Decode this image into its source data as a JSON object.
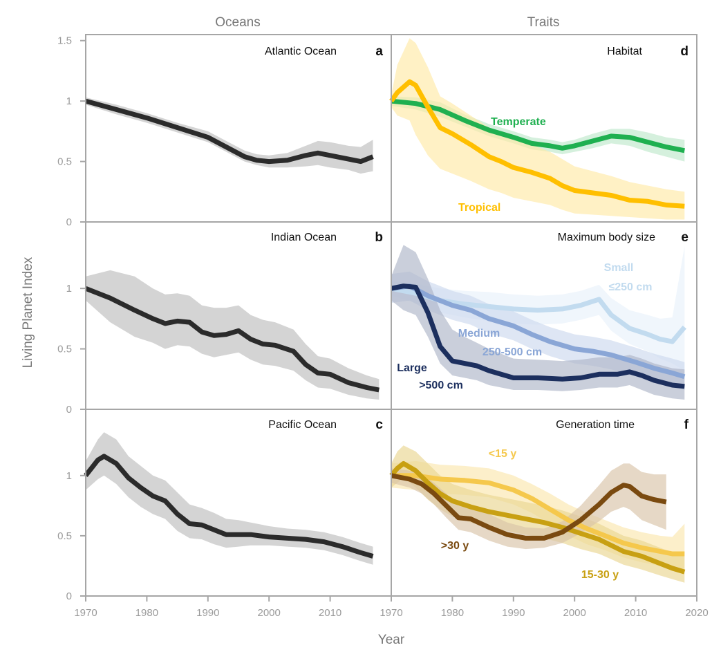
{
  "column_titles": {
    "left": "Oceans",
    "right": "Traits"
  },
  "axes": {
    "ylabel": "Living Planet Index",
    "xlabel": "Year"
  },
  "chart_data": [
    {
      "type": "line",
      "panel": "a",
      "title": "Atlantic Ocean",
      "ylim": [
        0,
        1.55
      ],
      "yticks": [
        "0",
        "0.5",
        "1",
        "1.5"
      ],
      "series": [
        {
          "color": "#2b2b2b",
          "band": "#bdbdbd",
          "x": [
            1970,
            1975,
            1980,
            1985,
            1990,
            1993,
            1996,
            1998,
            2000,
            2003,
            2006,
            2008,
            2010,
            2013,
            2015,
            2017
          ],
          "values": [
            1.0,
            0.93,
            0.86,
            0.78,
            0.7,
            0.62,
            0.54,
            0.51,
            0.5,
            0.51,
            0.55,
            0.57,
            0.55,
            0.52,
            0.5,
            0.54
          ],
          "lower": [
            0.97,
            0.89,
            0.82,
            0.74,
            0.66,
            0.58,
            0.5,
            0.47,
            0.45,
            0.45,
            0.46,
            0.47,
            0.45,
            0.43,
            0.4,
            0.42
          ],
          "upper": [
            1.03,
            0.97,
            0.9,
            0.82,
            0.75,
            0.67,
            0.59,
            0.56,
            0.55,
            0.57,
            0.63,
            0.67,
            0.66,
            0.63,
            0.62,
            0.68
          ]
        }
      ]
    },
    {
      "type": "line",
      "panel": "d",
      "title": "Habitat",
      "ylim": [
        0,
        1.55
      ],
      "series": [
        {
          "name": "Temperate",
          "color": "#1fb050",
          "band": "#bfe8cb",
          "x": [
            1970,
            1974,
            1978,
            1982,
            1986,
            1990,
            1993,
            1996,
            1998,
            2000,
            2003,
            2006,
            2009,
            2012,
            2015,
            2018
          ],
          "values": [
            1.0,
            0.98,
            0.93,
            0.84,
            0.76,
            0.7,
            0.65,
            0.63,
            0.61,
            0.63,
            0.67,
            0.71,
            0.7,
            0.66,
            0.62,
            0.59
          ],
          "lower": [
            0.96,
            0.93,
            0.87,
            0.79,
            0.71,
            0.65,
            0.6,
            0.58,
            0.56,
            0.58,
            0.61,
            0.65,
            0.63,
            0.58,
            0.54,
            0.5
          ],
          "upper": [
            1.04,
            1.03,
            0.99,
            0.89,
            0.81,
            0.75,
            0.7,
            0.68,
            0.66,
            0.68,
            0.73,
            0.77,
            0.77,
            0.74,
            0.7,
            0.68
          ]
        },
        {
          "name": "Tropical",
          "color": "#ffbf00",
          "band": "#ffeaa6",
          "x": [
            1970,
            1971,
            1973,
            1974,
            1976,
            1978,
            1980,
            1983,
            1986,
            1988,
            1990,
            1993,
            1996,
            1998,
            2000,
            2003,
            2006,
            2009,
            2012,
            2015,
            2018
          ],
          "values": [
            1.0,
            1.07,
            1.16,
            1.13,
            0.95,
            0.78,
            0.73,
            0.64,
            0.54,
            0.5,
            0.45,
            0.41,
            0.36,
            0.3,
            0.26,
            0.24,
            0.22,
            0.18,
            0.17,
            0.14,
            0.13
          ],
          "lower": [
            0.95,
            0.88,
            0.84,
            0.72,
            0.55,
            0.44,
            0.4,
            0.34,
            0.27,
            0.24,
            0.2,
            0.17,
            0.14,
            0.1,
            0.07,
            0.06,
            0.05,
            0.04,
            0.03,
            0.02,
            0.02
          ],
          "upper": [
            1.05,
            1.3,
            1.52,
            1.48,
            1.28,
            1.04,
            0.98,
            0.88,
            0.78,
            0.74,
            0.68,
            0.64,
            0.58,
            0.52,
            0.46,
            0.42,
            0.38,
            0.33,
            0.3,
            0.27,
            0.25
          ]
        }
      ]
    },
    {
      "type": "line",
      "panel": "b",
      "title": "Indian Ocean",
      "ylim": [
        0,
        1.55
      ],
      "yticks": [
        "0",
        "0.5",
        "1"
      ],
      "series": [
        {
          "color": "#2b2b2b",
          "band": "#bdbdbd",
          "x": [
            1970,
            1974,
            1978,
            1981,
            1983,
            1985,
            1987,
            1989,
            1991,
            1993,
            1995,
            1997,
            1999,
            2001,
            2004,
            2006,
            2008,
            2010,
            2013,
            2016,
            2018
          ],
          "values": [
            1.0,
            0.92,
            0.82,
            0.75,
            0.71,
            0.73,
            0.72,
            0.64,
            0.61,
            0.62,
            0.65,
            0.58,
            0.54,
            0.53,
            0.48,
            0.37,
            0.3,
            0.29,
            0.22,
            0.18,
            0.16
          ],
          "lower": [
            0.9,
            0.72,
            0.6,
            0.55,
            0.5,
            0.53,
            0.52,
            0.46,
            0.43,
            0.45,
            0.47,
            0.41,
            0.37,
            0.36,
            0.32,
            0.24,
            0.18,
            0.17,
            0.12,
            0.09,
            0.08
          ],
          "upper": [
            1.1,
            1.15,
            1.1,
            1.0,
            0.95,
            0.96,
            0.94,
            0.86,
            0.84,
            0.84,
            0.86,
            0.78,
            0.74,
            0.72,
            0.66,
            0.54,
            0.44,
            0.42,
            0.34,
            0.28,
            0.25
          ]
        }
      ]
    },
    {
      "type": "line",
      "panel": "e",
      "title": "Maximum body size",
      "ylim": [
        0,
        1.55
      ],
      "series": [
        {
          "name": "Small",
          "name2": "≤250 cm",
          "color": "#c2dbef",
          "band": "#e8f1fa",
          "x": [
            1970,
            1974,
            1978,
            1982,
            1986,
            1990,
            1994,
            1998,
            2001,
            2004,
            2006,
            2009,
            2012,
            2014,
            2016,
            2018
          ],
          "values": [
            1.0,
            0.96,
            0.9,
            0.87,
            0.85,
            0.83,
            0.82,
            0.83,
            0.86,
            0.91,
            0.78,
            0.67,
            0.62,
            0.58,
            0.56,
            0.68
          ],
          "lower": [
            0.94,
            0.88,
            0.8,
            0.76,
            0.73,
            0.71,
            0.7,
            0.71,
            0.74,
            0.78,
            0.65,
            0.54,
            0.48,
            0.42,
            0.38,
            0.32
          ],
          "upper": [
            1.06,
            1.04,
            1.0,
            0.98,
            0.97,
            0.95,
            0.94,
            0.95,
            0.98,
            1.03,
            0.92,
            0.82,
            0.78,
            0.75,
            0.76,
            1.35
          ]
        },
        {
          "name": "Medium",
          "name2": "250-500 cm",
          "color": "#8aa6d6",
          "band": "#cdd9ee",
          "x": [
            1970,
            1973,
            1976,
            1980,
            1983,
            1986,
            1990,
            1993,
            1996,
            2000,
            2003,
            2006,
            2010,
            2013,
            2016,
            2018
          ],
          "values": [
            1.0,
            1.02,
            0.94,
            0.86,
            0.82,
            0.75,
            0.69,
            0.62,
            0.56,
            0.5,
            0.48,
            0.45,
            0.39,
            0.34,
            0.3,
            0.27
          ],
          "lower": [
            0.88,
            0.9,
            0.82,
            0.74,
            0.7,
            0.63,
            0.57,
            0.5,
            0.44,
            0.38,
            0.36,
            0.33,
            0.27,
            0.22,
            0.18,
            0.16
          ],
          "upper": [
            1.12,
            1.14,
            1.06,
            0.98,
            0.94,
            0.87,
            0.81,
            0.74,
            0.68,
            0.62,
            0.6,
            0.57,
            0.51,
            0.46,
            0.42,
            0.39
          ]
        },
        {
          "name": "Large",
          "name2": ">500 cm",
          "color": "#1c2f5e",
          "band": "#aeb6c8",
          "x": [
            1970,
            1972,
            1974,
            1976,
            1978,
            1980,
            1982,
            1984,
            1986,
            1990,
            1994,
            1998,
            2001,
            2004,
            2007,
            2009,
            2011,
            2013,
            2016,
            2018
          ],
          "values": [
            1.0,
            1.02,
            1.01,
            0.8,
            0.52,
            0.4,
            0.38,
            0.36,
            0.32,
            0.26,
            0.26,
            0.25,
            0.26,
            0.29,
            0.29,
            0.31,
            0.28,
            0.24,
            0.2,
            0.19
          ],
          "lower": [
            0.9,
            0.82,
            0.78,
            0.6,
            0.38,
            0.28,
            0.26,
            0.24,
            0.2,
            0.16,
            0.16,
            0.15,
            0.16,
            0.18,
            0.18,
            0.2,
            0.16,
            0.12,
            0.09,
            0.08
          ],
          "upper": [
            1.1,
            1.36,
            1.3,
            1.08,
            0.82,
            0.66,
            0.6,
            0.55,
            0.5,
            0.42,
            0.41,
            0.4,
            0.41,
            0.43,
            0.43,
            0.45,
            0.42,
            0.38,
            0.34,
            0.33
          ]
        }
      ]
    },
    {
      "type": "line",
      "panel": "c",
      "title": "Pacific Ocean",
      "ylim": [
        0,
        1.55
      ],
      "yticks": [
        "0",
        "0.5",
        "1"
      ],
      "series": [
        {
          "color": "#2b2b2b",
          "band": "#bdbdbd",
          "x": [
            1970,
            1972,
            1973,
            1975,
            1977,
            1979,
            1981,
            1983,
            1985,
            1987,
            1989,
            1991,
            1993,
            1995,
            1997,
            2000,
            2003,
            2006,
            2009,
            2012,
            2015,
            2017
          ],
          "values": [
            1.0,
            1.13,
            1.16,
            1.1,
            0.98,
            0.9,
            0.83,
            0.79,
            0.68,
            0.6,
            0.59,
            0.55,
            0.51,
            0.51,
            0.51,
            0.49,
            0.48,
            0.47,
            0.45,
            0.41,
            0.36,
            0.33
          ],
          "lower": [
            0.88,
            0.97,
            1.0,
            0.93,
            0.82,
            0.74,
            0.68,
            0.64,
            0.54,
            0.48,
            0.47,
            0.43,
            0.4,
            0.41,
            0.42,
            0.42,
            0.41,
            0.4,
            0.38,
            0.34,
            0.29,
            0.26
          ],
          "upper": [
            1.12,
            1.3,
            1.36,
            1.3,
            1.16,
            1.08,
            1.0,
            0.96,
            0.86,
            0.76,
            0.73,
            0.69,
            0.64,
            0.63,
            0.61,
            0.58,
            0.56,
            0.55,
            0.53,
            0.49,
            0.44,
            0.41
          ]
        }
      ]
    },
    {
      "type": "line",
      "panel": "f",
      "title": "Generation time",
      "ylim": [
        0,
        1.55
      ],
      "series": [
        {
          "name": "<15 y",
          "color": "#f5c84c",
          "band": "#fbe6ae",
          "x": [
            1970,
            1974,
            1978,
            1982,
            1986,
            1990,
            1993,
            1996,
            1999,
            2002,
            2005,
            2008,
            2011,
            2014,
            2016,
            2018
          ],
          "values": [
            1.0,
            1.0,
            0.97,
            0.96,
            0.94,
            0.88,
            0.81,
            0.72,
            0.63,
            0.56,
            0.5,
            0.44,
            0.4,
            0.37,
            0.35,
            0.35
          ],
          "lower": [
            0.9,
            0.88,
            0.85,
            0.84,
            0.82,
            0.76,
            0.69,
            0.6,
            0.5,
            0.43,
            0.38,
            0.32,
            0.28,
            0.25,
            0.22,
            0.2
          ],
          "upper": [
            1.1,
            1.12,
            1.09,
            1.08,
            1.06,
            1.0,
            0.93,
            0.85,
            0.76,
            0.69,
            0.63,
            0.57,
            0.53,
            0.5,
            0.49,
            0.6
          ]
        },
        {
          "name": "15-30 y",
          "color": "#c8a012",
          "band": "#ead690",
          "x": [
            1970,
            1971,
            1972,
            1974,
            1976,
            1978,
            1980,
            1983,
            1986,
            1989,
            1992,
            1995,
            1998,
            2001,
            2004,
            2008,
            2011,
            2014,
            2016,
            2018
          ],
          "values": [
            1.0,
            1.06,
            1.1,
            1.04,
            0.94,
            0.85,
            0.79,
            0.74,
            0.7,
            0.67,
            0.64,
            0.61,
            0.57,
            0.52,
            0.47,
            0.37,
            0.33,
            0.27,
            0.23,
            0.2
          ],
          "lower": [
            0.9,
            0.94,
            0.98,
            0.9,
            0.8,
            0.72,
            0.66,
            0.61,
            0.57,
            0.54,
            0.51,
            0.48,
            0.44,
            0.39,
            0.35,
            0.26,
            0.22,
            0.17,
            0.14,
            0.11
          ],
          "upper": [
            1.1,
            1.2,
            1.25,
            1.2,
            1.1,
            1.0,
            0.93,
            0.88,
            0.84,
            0.81,
            0.78,
            0.75,
            0.71,
            0.66,
            0.6,
            0.5,
            0.46,
            0.4,
            0.36,
            0.33
          ]
        },
        {
          "name": ">30 y",
          "color": "#7a4a10",
          "band": "#d8c3a8",
          "x": [
            1970,
            1973,
            1975,
            1977,
            1979,
            1981,
            1983,
            1986,
            1989,
            1992,
            1995,
            1998,
            2001,
            2004,
            2006,
            2008,
            2009,
            2011,
            2013,
            2015
          ],
          "values": [
            1.0,
            0.97,
            0.93,
            0.85,
            0.75,
            0.65,
            0.64,
            0.57,
            0.51,
            0.48,
            0.48,
            0.53,
            0.63,
            0.76,
            0.86,
            0.92,
            0.91,
            0.83,
            0.8,
            0.78
          ],
          "lower": [
            0.94,
            0.9,
            0.85,
            0.76,
            0.65,
            0.55,
            0.53,
            0.46,
            0.41,
            0.39,
            0.4,
            0.44,
            0.52,
            0.62,
            0.7,
            0.74,
            0.72,
            0.63,
            0.59,
            0.55
          ],
          "upper": [
            1.06,
            1.04,
            1.01,
            0.94,
            0.85,
            0.75,
            0.75,
            0.68,
            0.61,
            0.57,
            0.56,
            0.62,
            0.75,
            0.92,
            1.04,
            1.1,
            1.1,
            1.03,
            1.01,
            1.01
          ]
        }
      ]
    }
  ],
  "xticks": [
    "1970",
    "1980",
    "1990",
    "2000",
    "2010",
    "1970",
    "1980",
    "1990",
    "2000",
    "2010",
    "2020"
  ]
}
